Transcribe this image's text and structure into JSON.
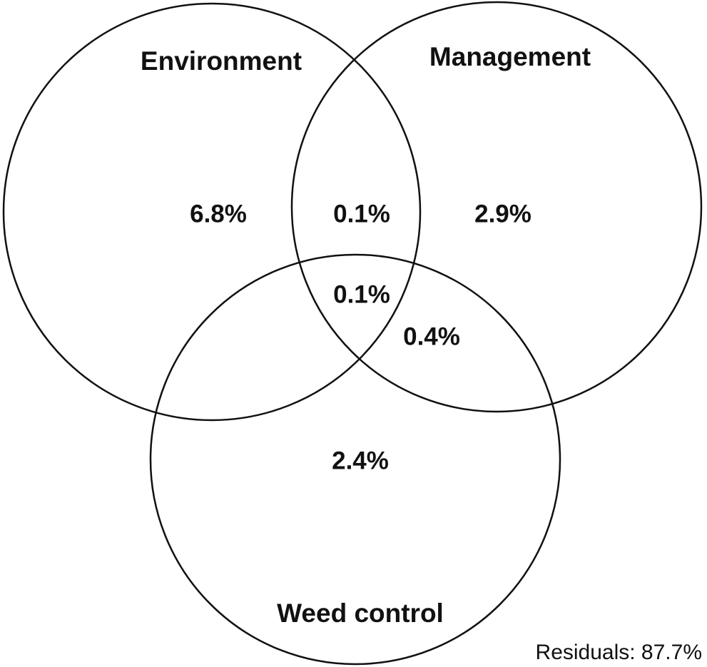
{
  "sets": [
    {
      "label": "Environment"
    },
    {
      "label": "Management"
    },
    {
      "label": "Weed control"
    }
  ],
  "regions": [
    {
      "label": "6.8%"
    },
    {
      "label": "0.1%"
    },
    {
      "label": "2.9%"
    },
    {
      "label": "0.1%"
    },
    {
      "label": "0.4%"
    },
    {
      "label": "2.4%"
    }
  ],
  "residuals": "Residuals: 87.7%"
}
